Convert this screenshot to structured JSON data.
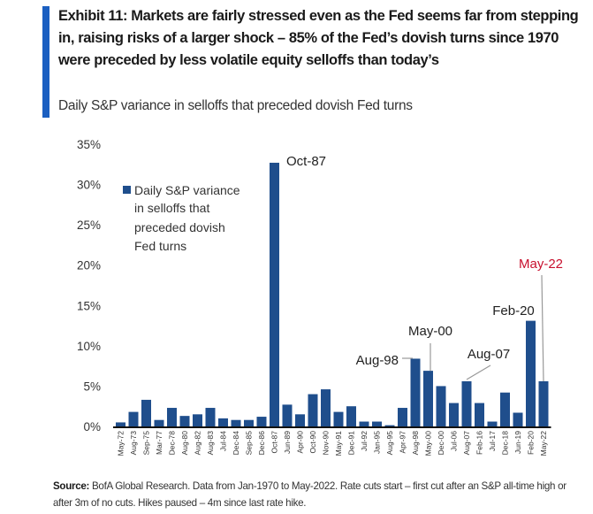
{
  "header": {
    "title": "Exhibit 11: Markets are fairly stressed even as the Fed seems far from stepping in, raising risks of a larger shock – 85% of the Fed’s dovish turns since 1970 were preceded by less volatile equity selloffs than today’s",
    "subtitle": "Daily S&P variance in selloffs that preceded dovish Fed turns",
    "accent_color": "#1b5fc1"
  },
  "footer": {
    "source_label": "Source:",
    "source_text": " BofA Global Research. Data from Jan-1970 to May-2022. Rate cuts start – first cut after an S&P all-time high or after 3m of no cuts. Hikes paused – 4m since last rate hike."
  },
  "chart_data": {
    "type": "bar",
    "title": "Daily S&P variance in selloffs that preceded dovish Fed turns",
    "xlabel": "",
    "ylabel": "",
    "ylim": [
      0,
      35
    ],
    "yticks": [
      0,
      5,
      10,
      15,
      20,
      25,
      30,
      35
    ],
    "ytick_labels": [
      "0%",
      "5%",
      "10%",
      "15%",
      "20%",
      "25%",
      "30%",
      "35%"
    ],
    "grid": false,
    "legend": {
      "position": "top-left",
      "entries": [
        "Daily S&P variance in selloffs that preceded dovish Fed turns"
      ],
      "lines": [
        "Daily S&P variance",
        "in selloffs that",
        "preceded dovish",
        "Fed turns"
      ]
    },
    "bar_color": "#1f4e8c",
    "categories": [
      "May-72",
      "Aug-73",
      "Sep-75",
      "Mar-77",
      "Dec-78",
      "Aug-80",
      "Aug-82",
      "Aug-83",
      "Jul-84",
      "Dec-84",
      "Sep-85",
      "Dec-86",
      "Oct-87",
      "Jun-89",
      "Apr-90",
      "Oct-90",
      "Nov-90",
      "May-91",
      "Dec-91",
      "Jul-92",
      "Jan-95",
      "Aug-95",
      "Apr-97",
      "Aug-98",
      "May-00",
      "Dec-00",
      "Jul-06",
      "Aug-07",
      "Feb-16",
      "Jul-17",
      "Dec-18",
      "Jun-19",
      "Feb-20",
      "May-22"
    ],
    "series": [
      {
        "name": "Daily S&P variance in selloffs that preceded dovish Fed turns",
        "values": [
          0.5,
          1.8,
          3.3,
          0.8,
          2.3,
          1.3,
          1.5,
          2.3,
          1.0,
          0.8,
          0.8,
          1.2,
          32.7,
          2.7,
          1.5,
          4.0,
          4.6,
          1.8,
          2.5,
          0.6,
          0.6,
          0.15,
          2.3,
          8.4,
          6.9,
          5.0,
          2.9,
          5.6,
          2.9,
          0.6,
          4.2,
          1.7,
          13.1,
          5.6
        ]
      }
    ],
    "annotations": [
      {
        "label": "Oct-87",
        "category": "Oct-87",
        "color": "#222222"
      },
      {
        "label": "Aug-98",
        "category": "Aug-98",
        "color": "#222222"
      },
      {
        "label": "May-00",
        "category": "May-00",
        "color": "#222222"
      },
      {
        "label": "Aug-07",
        "category": "Aug-07",
        "color": "#222222"
      },
      {
        "label": "Feb-20",
        "category": "Feb-20",
        "color": "#222222"
      },
      {
        "label": "May-22",
        "category": "May-22",
        "color": "#c8102e"
      }
    ]
  }
}
